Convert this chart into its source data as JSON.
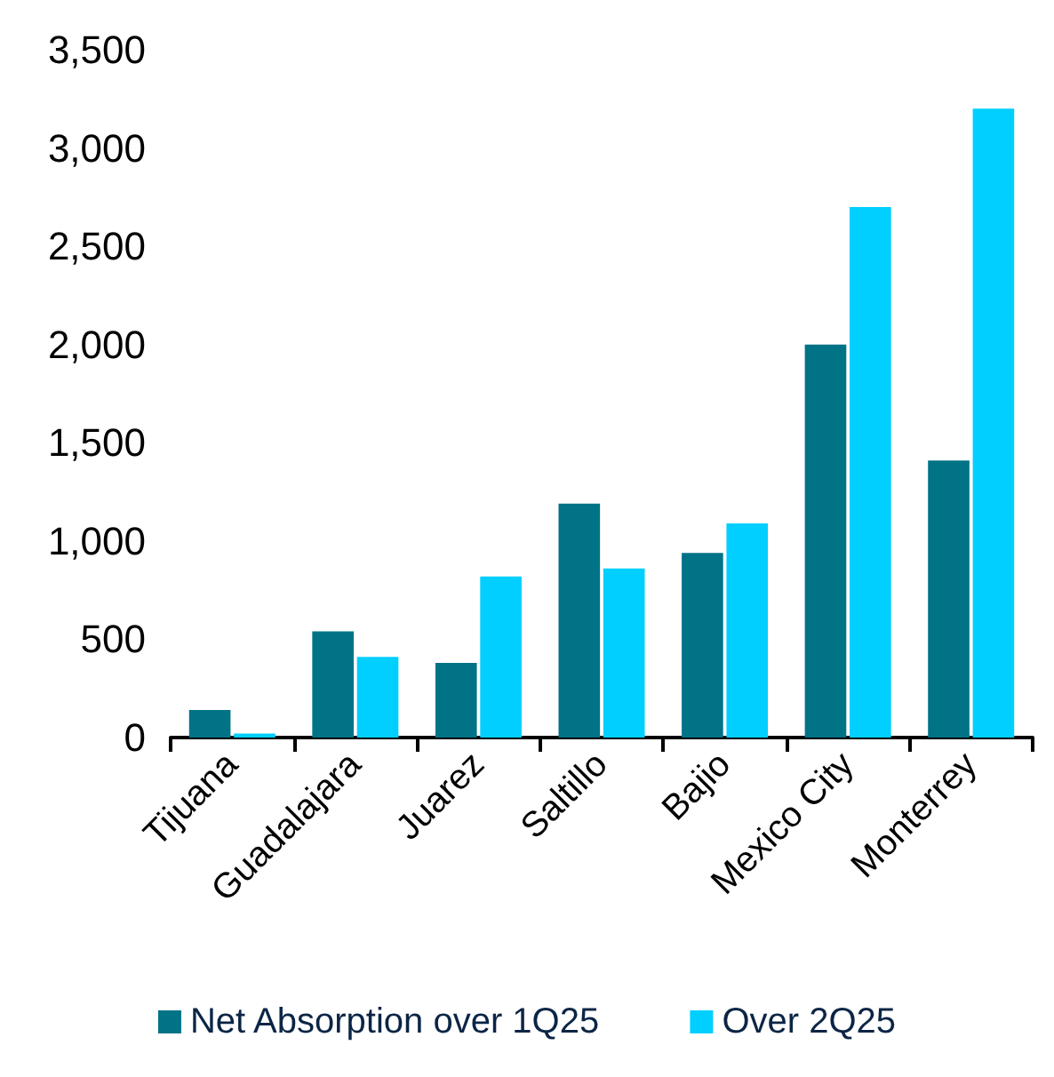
{
  "chart_data": {
    "type": "bar",
    "categories": [
      "Tijuana",
      "Guadalajara",
      "Juarez",
      "Saltillo",
      "Bajio",
      "Mexico City",
      "Monterrey"
    ],
    "series": [
      {
        "name": "Net Absorption over 1Q25",
        "color": "#017387",
        "values": [
          140,
          540,
          380,
          1190,
          940,
          2000,
          1410
        ]
      },
      {
        "name": "Over 2Q25",
        "color": "#00cfff",
        "values": [
          20,
          410,
          820,
          860,
          1090,
          2700,
          3200
        ]
      }
    ],
    "ylim": [
      0,
      3500
    ],
    "yticks": [
      0,
      500,
      {
        "value": 1000,
        "label": "1,000"
      },
      {
        "value": 1500,
        "label": "1,500"
      },
      {
        "value": 2000,
        "label": "2,000"
      },
      {
        "value": 2500,
        "label": "2,500"
      },
      {
        "value": 3000,
        "label": "3,000"
      },
      {
        "value": 3500,
        "label": "3,500"
      }
    ],
    "grid": false,
    "legend": "bottom"
  }
}
